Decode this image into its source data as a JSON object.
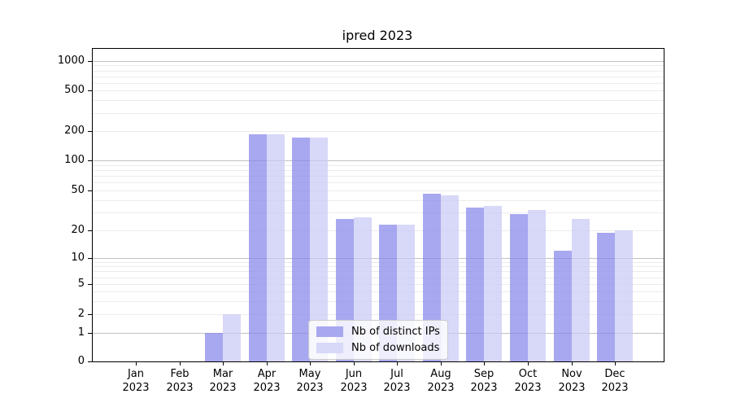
{
  "title": "ipred 2023",
  "chart_data": {
    "type": "bar",
    "title": "ipred 2023",
    "categories": [
      "Jan 2023",
      "Feb 2023",
      "Mar 2023",
      "Apr 2023",
      "May 2023",
      "Jun 2023",
      "Jul 2023",
      "Aug 2023",
      "Sep 2023",
      "Oct 2023",
      "Nov 2023",
      "Dec 2023"
    ],
    "series": [
      {
        "name": "Nb of distinct IPs",
        "color": "#a8a8f0",
        "values": [
          0,
          0,
          1,
          185,
          170,
          26,
          23,
          46,
          34,
          29,
          12,
          19
        ]
      },
      {
        "name": "Nb of downloads",
        "color": "#d8d8f8",
        "values": [
          0,
          0,
          2,
          185,
          170,
          27,
          23,
          45,
          35,
          32,
          26,
          20
        ]
      }
    ],
    "xlabel": "",
    "ylabel": "",
    "yscale": "symlog",
    "yticks": [
      0,
      1,
      2,
      5,
      10,
      20,
      50,
      100,
      200,
      500,
      1000
    ],
    "ylim": [
      0,
      1000
    ],
    "grid": true,
    "legend_position": "lower center"
  },
  "legend": {
    "items": [
      {
        "label": "Nb of distinct IPs",
        "color": "#a8a8f0"
      },
      {
        "label": "Nb of downloads",
        "color": "#d8d8f8"
      }
    ]
  },
  "colors": {
    "ips_bar": "rgba(134,134,234,0.72)",
    "downloads_bar": "rgba(201,201,245,0.72)",
    "major_grid": "#c2c2c2",
    "minor_grid": "#ececec",
    "spine": "#000000"
  }
}
